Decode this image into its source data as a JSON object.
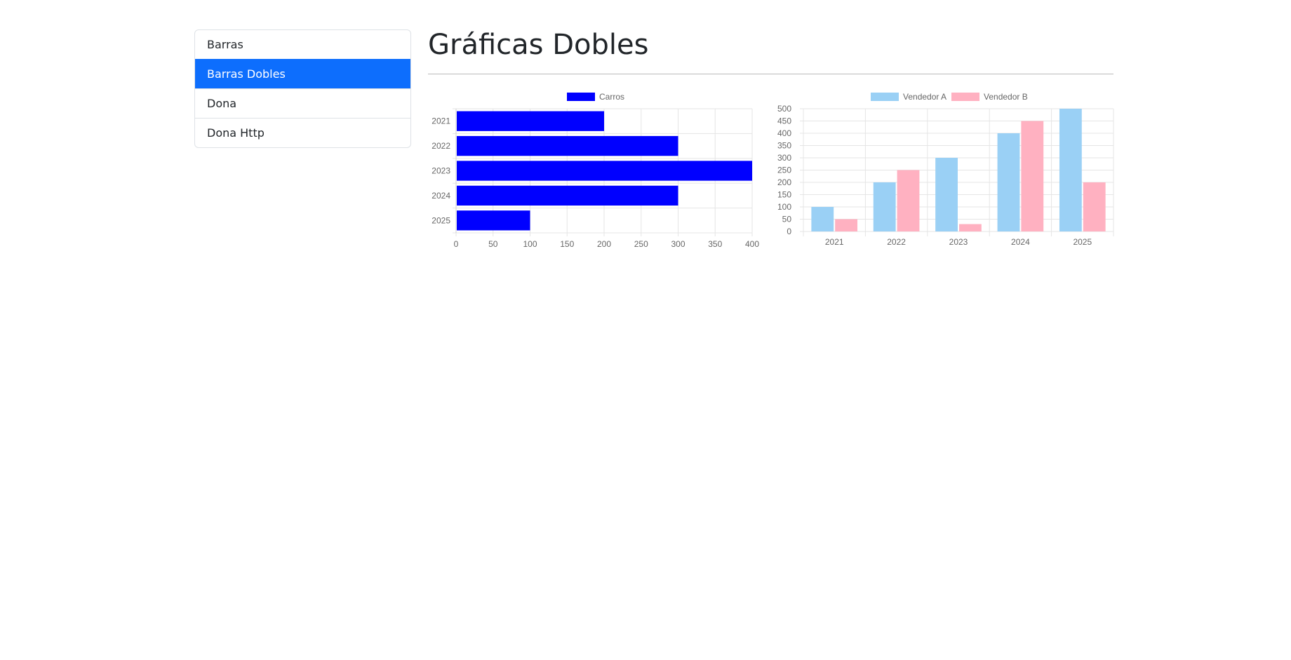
{
  "sidebar": {
    "items": [
      {
        "label": "Barras",
        "active": false
      },
      {
        "label": "Barras Dobles",
        "active": true
      },
      {
        "label": "Dona",
        "active": false
      },
      {
        "label": "Dona Http",
        "active": false
      }
    ]
  },
  "main": {
    "title": "Gráficas Dobles"
  },
  "colors": {
    "accent": "#0d6efd",
    "carros": "#0000ff",
    "vendedor_a": "#9ad0f5",
    "vendedor_b": "#ffb1c1"
  },
  "chart_data": [
    {
      "type": "bar",
      "orientation": "horizontal",
      "categories": [
        "2021",
        "2022",
        "2023",
        "2024",
        "2025"
      ],
      "series": [
        {
          "name": "Carros",
          "values": [
            200,
            300,
            400,
            300,
            100
          ],
          "color": "#0000ff"
        }
      ],
      "xlim": [
        0,
        400
      ],
      "xticks": [
        0,
        50,
        100,
        150,
        200,
        250,
        300,
        350,
        400
      ],
      "legend": "top",
      "grid": true
    },
    {
      "type": "bar",
      "orientation": "vertical",
      "categories": [
        "2021",
        "2022",
        "2023",
        "2024",
        "2025"
      ],
      "series": [
        {
          "name": "Vendedor A",
          "values": [
            100,
            200,
            300,
            400,
            500
          ],
          "color": "#9ad0f5"
        },
        {
          "name": "Vendedor B",
          "values": [
            50,
            250,
            30,
            450,
            200
          ],
          "color": "#ffb1c1"
        }
      ],
      "ylim": [
        0,
        500
      ],
      "yticks": [
        0,
        50,
        100,
        150,
        200,
        250,
        300,
        350,
        400,
        450,
        500
      ],
      "legend": "top",
      "grid": true
    }
  ]
}
